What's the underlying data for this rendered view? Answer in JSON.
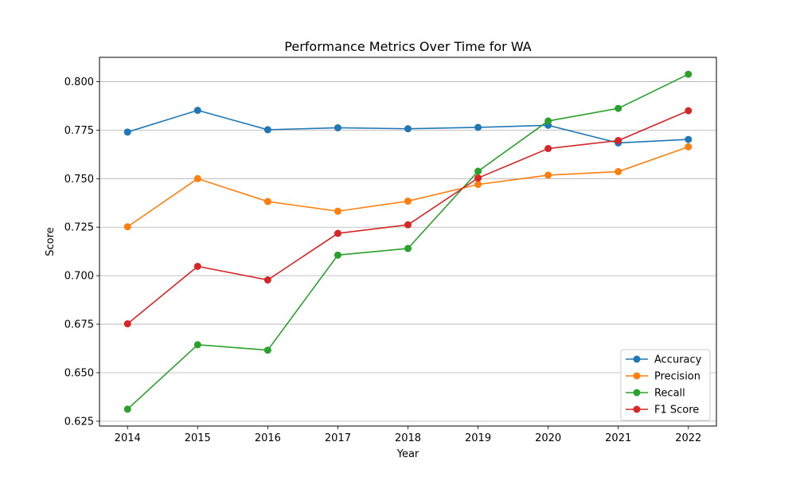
{
  "chart_data": {
    "type": "line",
    "title": "Performance Metrics Over Time for WA",
    "xlabel": "Year",
    "ylabel": "Score",
    "x": [
      2014,
      2015,
      2016,
      2017,
      2018,
      2019,
      2020,
      2021,
      2022
    ],
    "ylim": [
      0.6225,
      0.8125
    ],
    "yticks": [
      0.625,
      0.65,
      0.675,
      0.7,
      0.725,
      0.75,
      0.775,
      0.8
    ],
    "ytick_labels": [
      "0.625",
      "0.650",
      "0.675",
      "0.700",
      "0.725",
      "0.750",
      "0.775",
      "0.800"
    ],
    "xtick_labels": [
      "2014",
      "2015",
      "2016",
      "2017",
      "2018",
      "2019",
      "2020",
      "2021",
      "2022"
    ],
    "grid": "y-axis major gridlines",
    "legend_position": "lower-right",
    "series": [
      {
        "name": "Accuracy",
        "color": "#1f77b4",
        "values": [
          0.774,
          0.7852,
          0.7752,
          0.7762,
          0.7757,
          0.7764,
          0.7775,
          0.7684,
          0.7702
        ]
      },
      {
        "name": "Precision",
        "color": "#ff7f0e",
        "values": [
          0.7252,
          0.75,
          0.7382,
          0.7332,
          0.7384,
          0.747,
          0.7518,
          0.7536,
          0.7664
        ]
      },
      {
        "name": "Recall",
        "color": "#2ca02c",
        "values": [
          0.6312,
          0.6644,
          0.6616,
          0.7106,
          0.714,
          0.7538,
          0.7797,
          0.7862,
          0.8038
        ]
      },
      {
        "name": "F1 Score",
        "color": "#d62728",
        "values": [
          0.6752,
          0.7048,
          0.6978,
          0.7218,
          0.7262,
          0.7503,
          0.7655,
          0.7696,
          0.785
        ]
      }
    ]
  }
}
